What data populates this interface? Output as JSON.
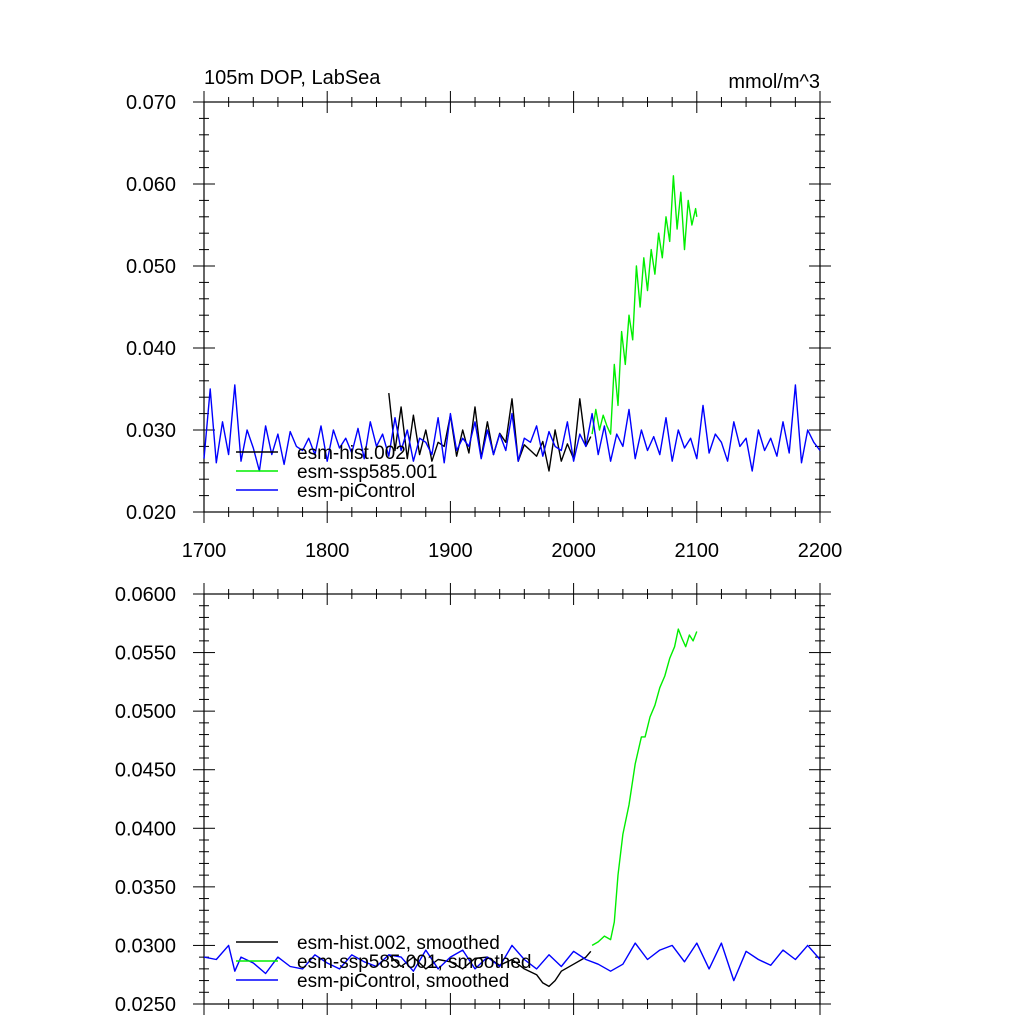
{
  "chart_data": [
    {
      "type": "line",
      "title": "105m DOP, LabSea",
      "units": "mmol/m^3",
      "xlim": [
        1700,
        2200
      ],
      "ylim": [
        0.02,
        0.07
      ],
      "x_ticks": [
        "1700",
        "1800",
        "1900",
        "2000",
        "2100",
        "2200"
      ],
      "y_ticks": [
        "0.020",
        "0.030",
        "0.040",
        "0.050",
        "0.060",
        "0.070"
      ],
      "legend": {
        "placement": "bottom-left"
      },
      "series": [
        {
          "name": "esm-hist.002",
          "color": "#000000",
          "x": [
            1850,
            1855,
            1860,
            1865,
            1870,
            1875,
            1880,
            1885,
            1890,
            1895,
            1900,
            1905,
            1910,
            1915,
            1920,
            1925,
            1930,
            1935,
            1940,
            1945,
            1950,
            1955,
            1960,
            1965,
            1970,
            1975,
            1980,
            1985,
            1990,
            1995,
            2000,
            2005,
            2010,
            2014
          ],
          "values": [
            0.0345,
            0.0275,
            0.0328,
            0.0265,
            0.0318,
            0.027,
            0.03,
            0.0262,
            0.0285,
            0.028,
            0.0318,
            0.0268,
            0.03,
            0.0272,
            0.0328,
            0.0266,
            0.031,
            0.027,
            0.0296,
            0.0285,
            0.0338,
            0.0262,
            0.0282,
            0.0275,
            0.0268,
            0.0286,
            0.025,
            0.03,
            0.0262,
            0.0283,
            0.0265,
            0.0338,
            0.028,
            0.0292
          ]
        },
        {
          "name": "esm-ssp585.001",
          "color": "#00ee00",
          "x": [
            2015,
            2018,
            2021,
            2024,
            2027,
            2030,
            2033,
            2036,
            2039,
            2042,
            2045,
            2048,
            2051,
            2054,
            2057,
            2060,
            2063,
            2066,
            2069,
            2072,
            2075,
            2078,
            2081,
            2084,
            2087,
            2090,
            2093,
            2096,
            2099,
            2100
          ],
          "values": [
            0.0295,
            0.0325,
            0.03,
            0.0318,
            0.0305,
            0.0295,
            0.038,
            0.033,
            0.042,
            0.038,
            0.044,
            0.041,
            0.05,
            0.045,
            0.051,
            0.047,
            0.052,
            0.049,
            0.054,
            0.051,
            0.056,
            0.053,
            0.061,
            0.0545,
            0.059,
            0.052,
            0.058,
            0.055,
            0.057,
            0.056
          ]
        },
        {
          "name": "esm-piControl",
          "color": "#0000ff",
          "x": [
            1700,
            1705,
            1710,
            1715,
            1720,
            1725,
            1730,
            1735,
            1740,
            1745,
            1750,
            1755,
            1760,
            1765,
            1770,
            1775,
            1780,
            1785,
            1790,
            1795,
            1800,
            1805,
            1810,
            1815,
            1820,
            1825,
            1830,
            1835,
            1840,
            1845,
            1850,
            1855,
            1860,
            1865,
            1870,
            1875,
            1880,
            1885,
            1890,
            1895,
            1900,
            1905,
            1910,
            1915,
            1920,
            1925,
            1930,
            1935,
            1940,
            1945,
            1950,
            1955,
            1960,
            1965,
            1970,
            1975,
            1980,
            1985,
            1990,
            1995,
            2000,
            2005,
            2010,
            2015,
            2020,
            2025,
            2030,
            2035,
            2040,
            2045,
            2050,
            2055,
            2060,
            2065,
            2070,
            2075,
            2080,
            2085,
            2090,
            2095,
            2100,
            2105,
            2110,
            2115,
            2120,
            2125,
            2130,
            2135,
            2140,
            2145,
            2150,
            2155,
            2160,
            2165,
            2170,
            2175,
            2180,
            2185,
            2190,
            2195,
            2200
          ],
          "values": [
            0.0265,
            0.035,
            0.026,
            0.031,
            0.027,
            0.0355,
            0.0262,
            0.03,
            0.0278,
            0.025,
            0.0305,
            0.027,
            0.0295,
            0.0258,
            0.0298,
            0.028,
            0.0275,
            0.029,
            0.027,
            0.0305,
            0.0262,
            0.03,
            0.0278,
            0.029,
            0.0272,
            0.0302,
            0.0265,
            0.031,
            0.028,
            0.0295,
            0.0268,
            0.0315,
            0.0275,
            0.03,
            0.0262,
            0.029,
            0.0285,
            0.027,
            0.0315,
            0.026,
            0.032,
            0.0275,
            0.029,
            0.028,
            0.031,
            0.0265,
            0.03,
            0.027,
            0.0295,
            0.0275,
            0.032,
            0.0262,
            0.029,
            0.0285,
            0.0305,
            0.0268,
            0.0298,
            0.028,
            0.0275,
            0.031,
            0.0262,
            0.0295,
            0.028,
            0.032,
            0.027,
            0.0305,
            0.0262,
            0.0295,
            0.028,
            0.0325,
            0.0265,
            0.03,
            0.0275,
            0.0292,
            0.027,
            0.0315,
            0.0262,
            0.03,
            0.0278,
            0.029,
            0.0265,
            0.033,
            0.0272,
            0.0295,
            0.0285,
            0.0262,
            0.031,
            0.028,
            0.029,
            0.025,
            0.03,
            0.0275,
            0.029,
            0.0268,
            0.031,
            0.0272,
            0.0355,
            0.026,
            0.03,
            0.0285,
            0.0275
          ]
        }
      ]
    },
    {
      "type": "line",
      "title": "",
      "xlim": [
        1700,
        2200
      ],
      "ylim": [
        0.025,
        0.06
      ],
      "y_ticks": [
        "0.0250",
        "0.0300",
        "0.0350",
        "0.0400",
        "0.0450",
        "0.0500",
        "0.0550",
        "0.0600"
      ],
      "legend": {
        "placement": "bottom-left"
      },
      "series": [
        {
          "name": "esm-hist.002, smoothed",
          "color": "#000000",
          "x": [
            1850,
            1860,
            1870,
            1880,
            1890,
            1900,
            1910,
            1920,
            1930,
            1940,
            1950,
            1960,
            1970,
            1975,
            1980,
            1985,
            1990,
            2000,
            2010,
            2014
          ],
          "values": [
            0.0292,
            0.0282,
            0.029,
            0.028,
            0.0288,
            0.0286,
            0.028,
            0.0289,
            0.029,
            0.0283,
            0.0288,
            0.028,
            0.0275,
            0.0268,
            0.0265,
            0.027,
            0.0278,
            0.0284,
            0.029,
            0.0295
          ]
        },
        {
          "name": "esm-ssp585.001, smoothed",
          "color": "#00ee00",
          "x": [
            2015,
            2020,
            2025,
            2030,
            2033,
            2036,
            2040,
            2045,
            2050,
            2055,
            2058,
            2062,
            2066,
            2070,
            2074,
            2078,
            2082,
            2085,
            2088,
            2091,
            2094,
            2097,
            2100
          ],
          "values": [
            0.03,
            0.0303,
            0.0308,
            0.0305,
            0.032,
            0.036,
            0.0395,
            0.042,
            0.0455,
            0.0478,
            0.0478,
            0.0495,
            0.0505,
            0.052,
            0.053,
            0.0545,
            0.0555,
            0.057,
            0.0562,
            0.0555,
            0.0565,
            0.056,
            0.0568
          ]
        },
        {
          "name": "esm-piControl, smoothed",
          "color": "#0000ff",
          "x": [
            1700,
            1710,
            1720,
            1725,
            1730,
            1740,
            1750,
            1760,
            1770,
            1780,
            1790,
            1800,
            1810,
            1820,
            1830,
            1840,
            1850,
            1860,
            1870,
            1880,
            1890,
            1900,
            1910,
            1920,
            1930,
            1940,
            1950,
            1960,
            1970,
            1980,
            1990,
            2000,
            2010,
            2020,
            2030,
            2040,
            2050,
            2060,
            2070,
            2080,
            2090,
            2100,
            2110,
            2120,
            2130,
            2140,
            2150,
            2160,
            2170,
            2180,
            2190,
            2200
          ],
          "values": [
            0.029,
            0.0288,
            0.03,
            0.0278,
            0.029,
            0.0285,
            0.0276,
            0.029,
            0.0282,
            0.028,
            0.0292,
            0.0285,
            0.028,
            0.0292,
            0.0286,
            0.0282,
            0.0292,
            0.029,
            0.0278,
            0.0296,
            0.028,
            0.029,
            0.0296,
            0.028,
            0.029,
            0.0282,
            0.03,
            0.0288,
            0.028,
            0.0292,
            0.0282,
            0.0295,
            0.0288,
            0.0284,
            0.0278,
            0.0284,
            0.0302,
            0.0288,
            0.0296,
            0.03,
            0.0286,
            0.0302,
            0.028,
            0.0302,
            0.027,
            0.0295,
            0.0288,
            0.0283,
            0.0296,
            0.0288,
            0.03,
            0.0288
          ]
        }
      ]
    }
  ]
}
